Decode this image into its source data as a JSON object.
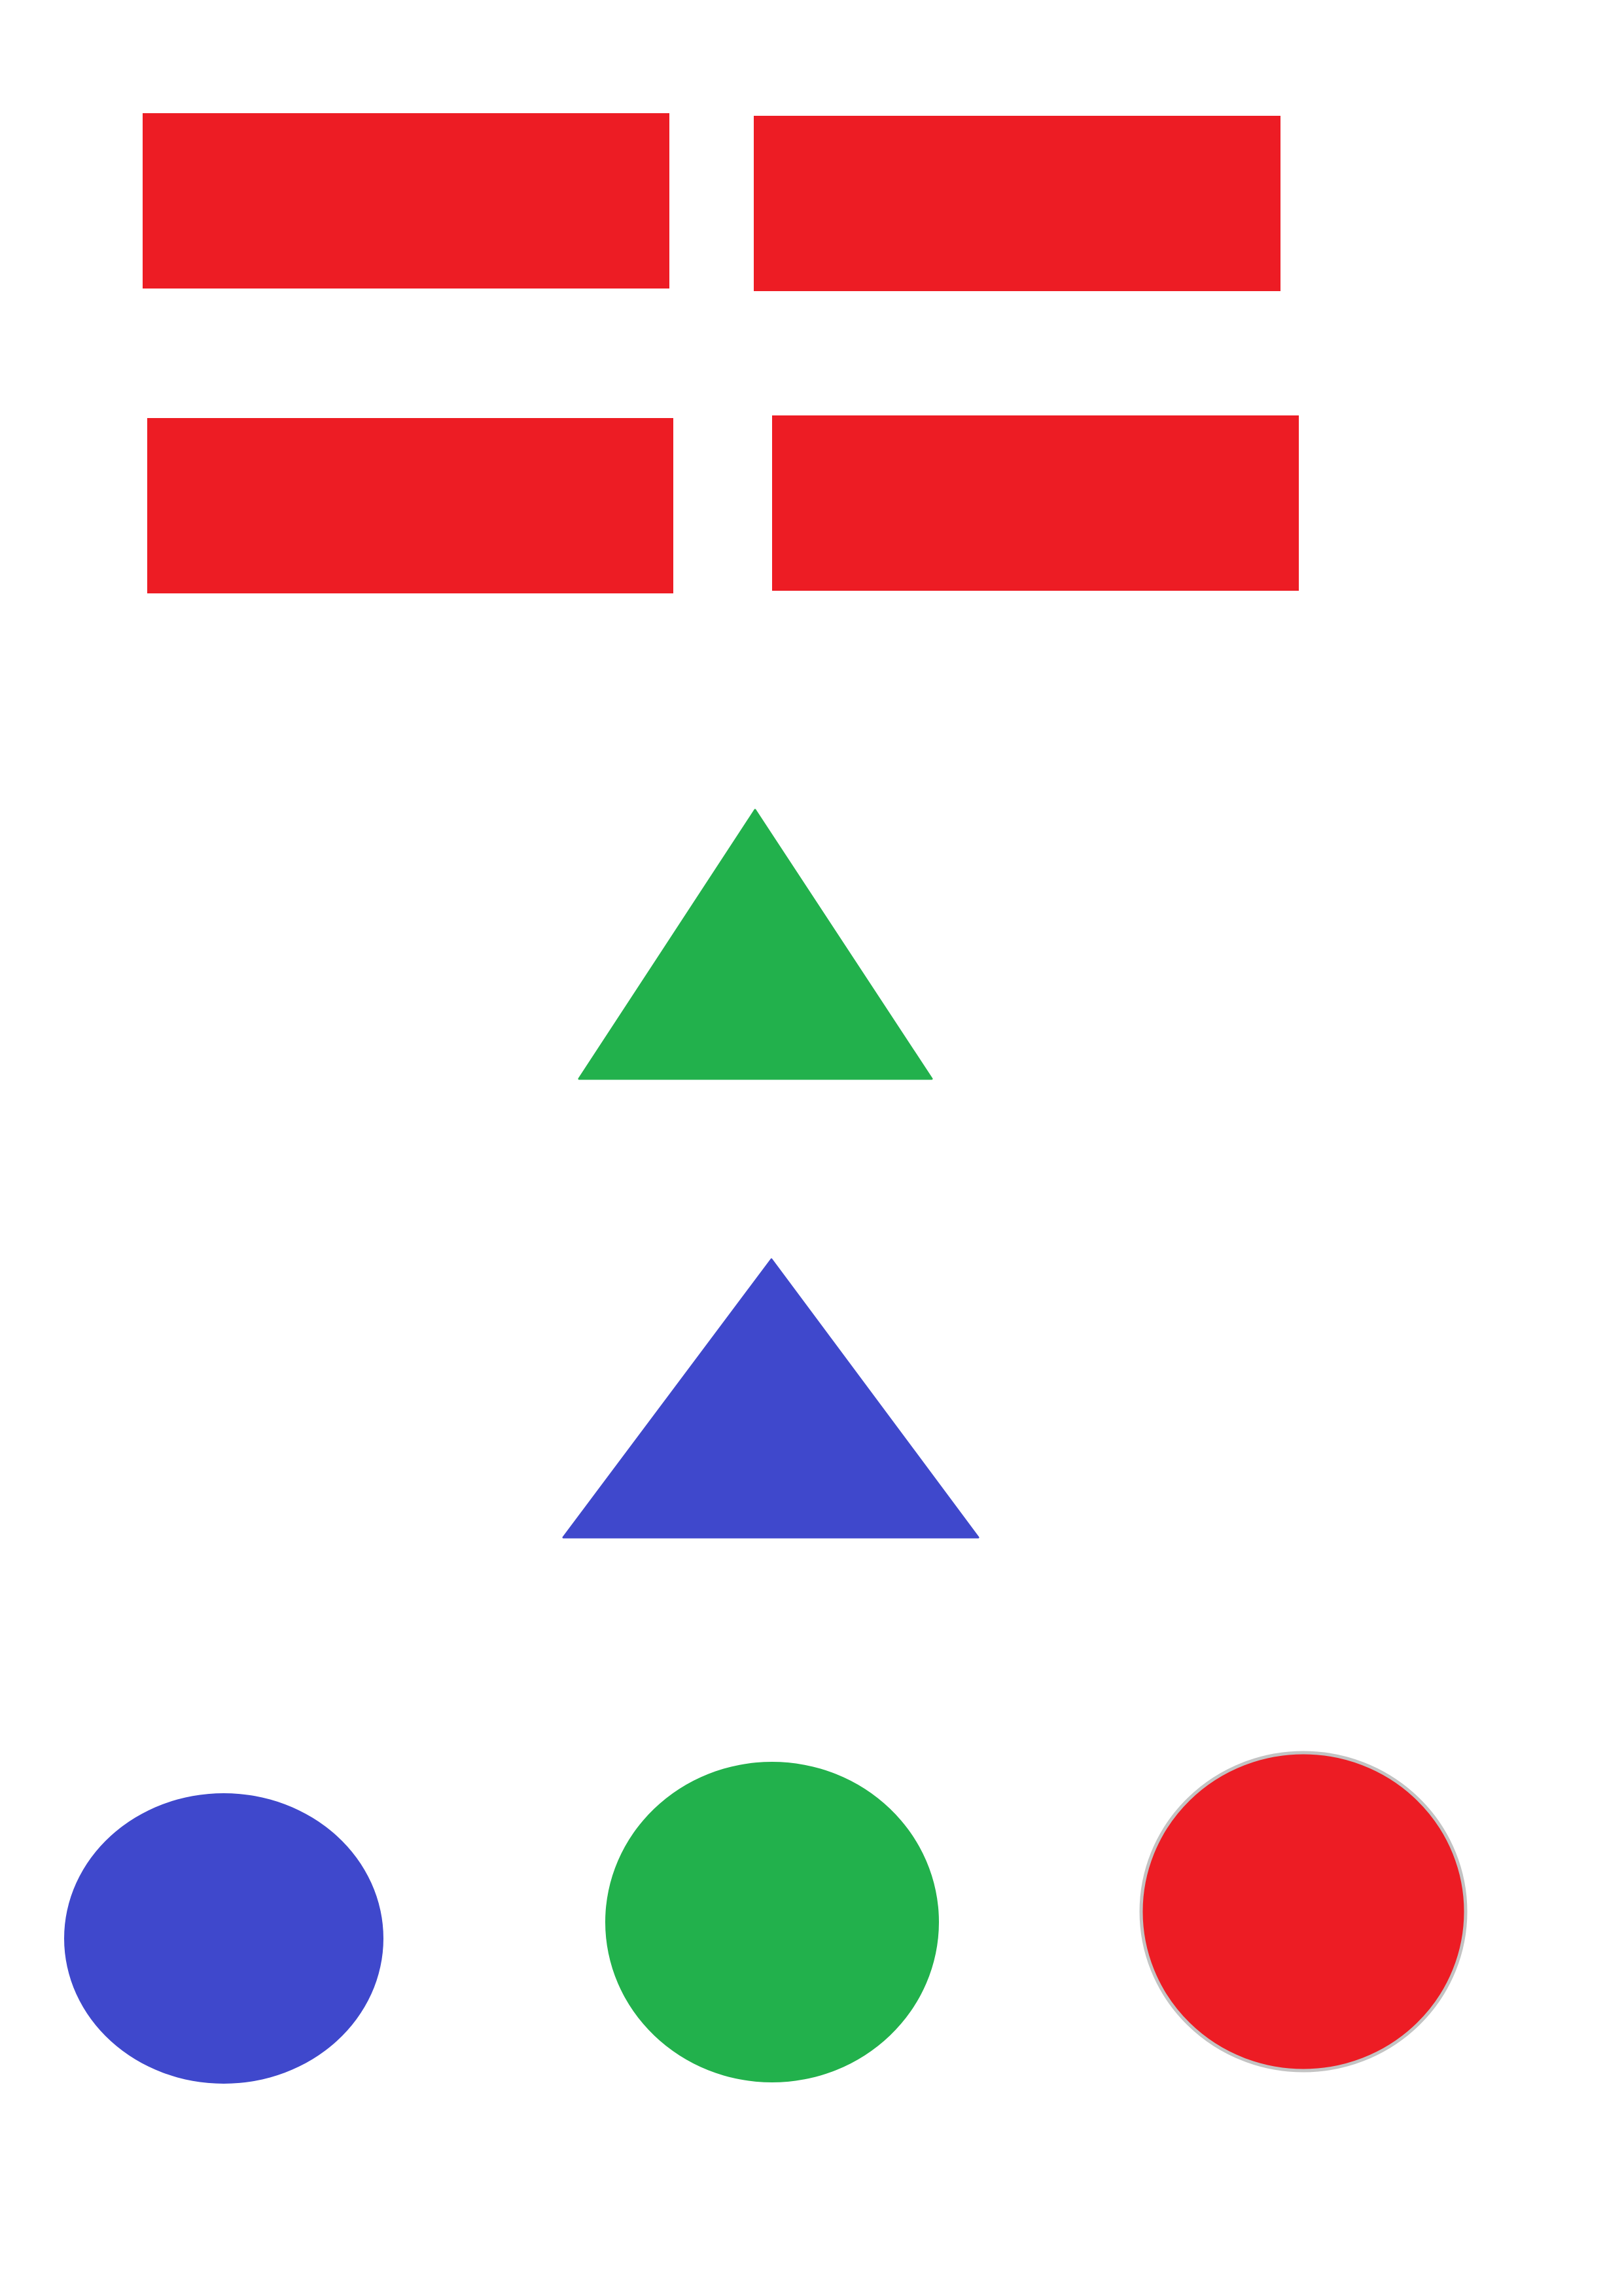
{
  "page": {
    "background": "#ffffff"
  },
  "colors": {
    "red": "#ed1c24",
    "green": "#22b14c",
    "blue": "#3f48cc",
    "circle_outline": "#c3c3c3"
  },
  "shapes": {
    "rectangles": [
      {
        "name": "red-rectangle-top-left",
        "color": "red"
      },
      {
        "name": "red-rectangle-top-right",
        "color": "red"
      },
      {
        "name": "red-rectangle-bottom-left",
        "color": "red"
      },
      {
        "name": "red-rectangle-bottom-right",
        "color": "red"
      }
    ],
    "triangles": [
      {
        "name": "green-triangle",
        "color": "green"
      },
      {
        "name": "blue-triangle",
        "color": "blue"
      }
    ],
    "circles": [
      {
        "name": "blue-circle",
        "color": "blue"
      },
      {
        "name": "green-circle",
        "color": "green"
      },
      {
        "name": "red-circle",
        "color": "red",
        "outline": "circle_outline"
      }
    ]
  }
}
